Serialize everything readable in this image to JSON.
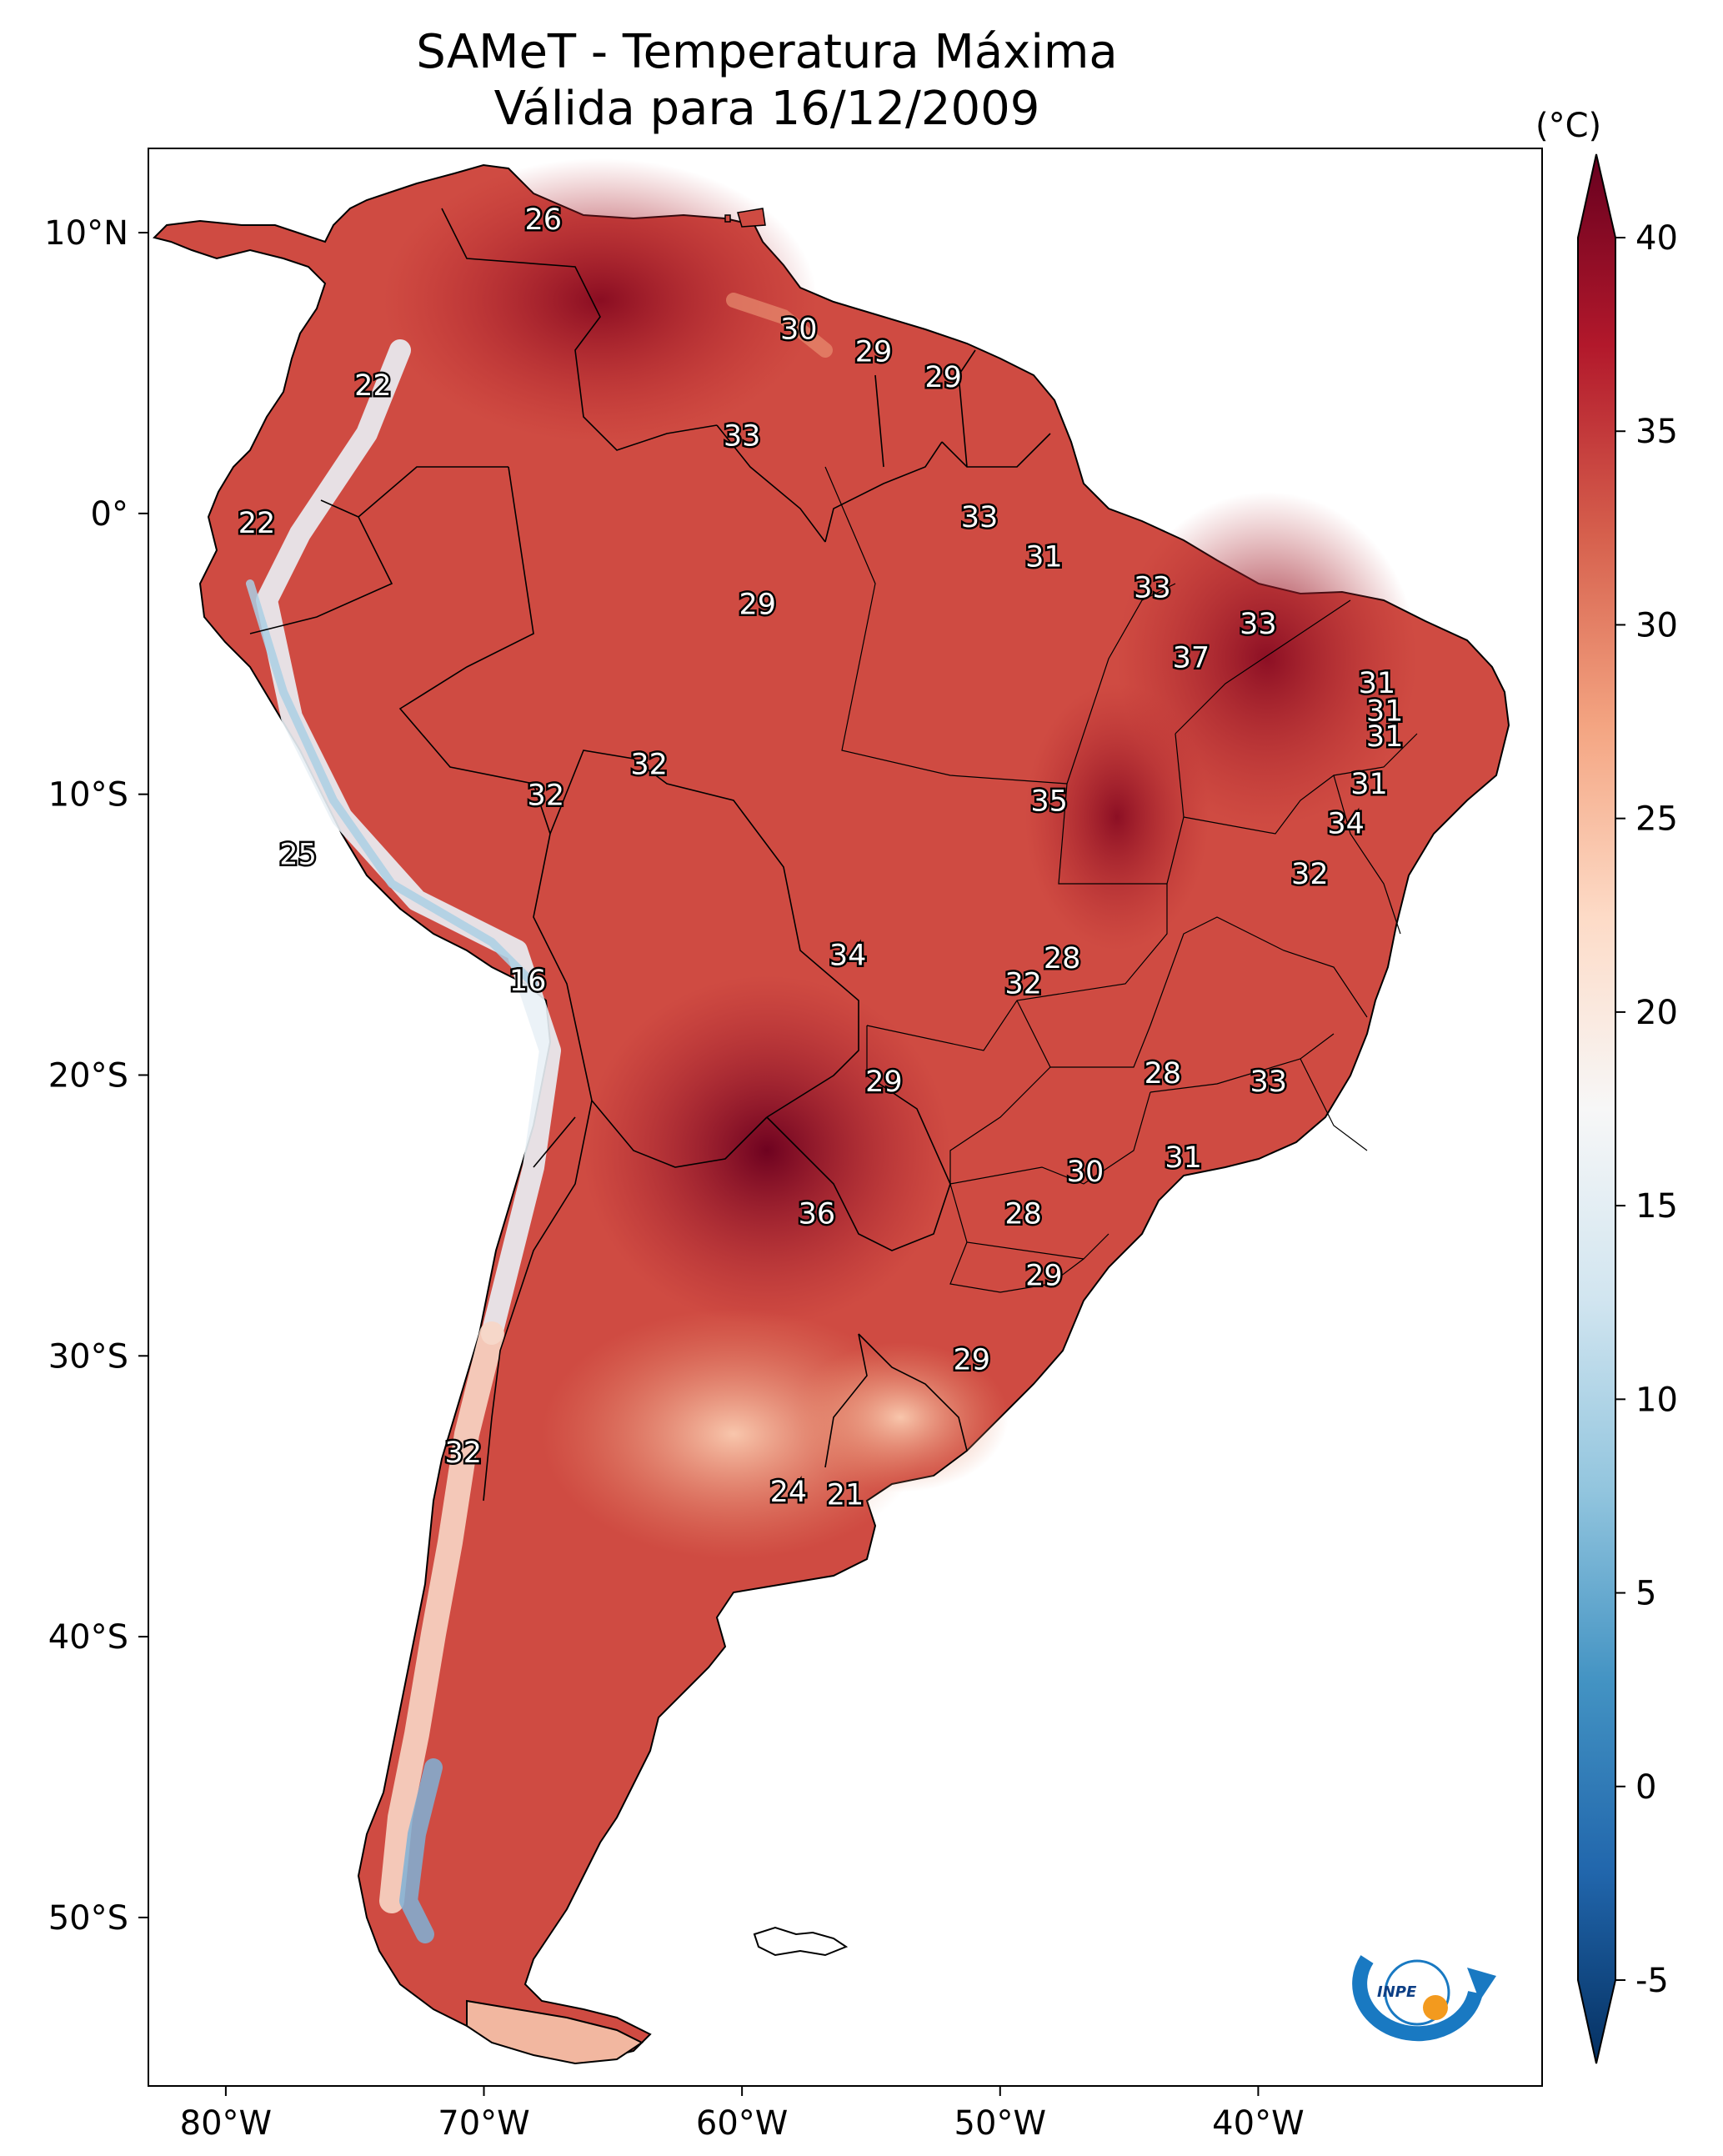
{
  "title": {
    "line1": "SAMeT - Temperatura Máxima",
    "line2": "Válida para 16/12/2009"
  },
  "colorbar": {
    "unit": "(°C)",
    "ticks": [
      "40",
      "35",
      "30",
      "25",
      "20",
      "15",
      "10",
      "5",
      "0",
      "-5"
    ],
    "range": [
      -5,
      40
    ],
    "colors": [
      "#053061",
      "#2166ac",
      "#4393c3",
      "#92c5de",
      "#d1e5f0",
      "#f7f7f7",
      "#fddbc7",
      "#f4a582",
      "#d6604d",
      "#b2182b",
      "#67001f"
    ]
  },
  "axes": {
    "lon_labels": [
      "80°W",
      "70°W",
      "60°W",
      "50°W",
      "40°W"
    ],
    "lat_labels": [
      "10°N",
      "0°",
      "10°S",
      "20°S",
      "30°S",
      "40°S",
      "50°S"
    ]
  },
  "contour_labels": [
    {
      "text": "26",
      "lon": -67.7,
      "lat": 10.5
    },
    {
      "text": "30",
      "lon": -57.8,
      "lat": 6.6
    },
    {
      "text": "29",
      "lon": -54.9,
      "lat": 5.8
    },
    {
      "text": "29",
      "lon": -52.2,
      "lat": 4.9
    },
    {
      "text": "22",
      "lon": -74.3,
      "lat": 4.6
    },
    {
      "text": "33",
      "lon": -60.0,
      "lat": 2.8
    },
    {
      "text": "22",
      "lon": -78.8,
      "lat": -0.3
    },
    {
      "text": "33",
      "lon": -50.8,
      "lat": -0.1
    },
    {
      "text": "31",
      "lon": -48.3,
      "lat": -1.5
    },
    {
      "text": "33",
      "lon": -44.1,
      "lat": -2.6
    },
    {
      "text": "29",
      "lon": -59.4,
      "lat": -3.2
    },
    {
      "text": "33",
      "lon": -40.0,
      "lat": -3.9
    },
    {
      "text": "37",
      "lon": -42.6,
      "lat": -5.1
    },
    {
      "text": "31",
      "lon": -35.4,
      "lat": -6.0
    },
    {
      "text": "31",
      "lon": -35.1,
      "lat": -7.0
    },
    {
      "text": "31",
      "lon": -35.1,
      "lat": -7.9
    },
    {
      "text": "32",
      "lon": -63.6,
      "lat": -8.9
    },
    {
      "text": "32",
      "lon": -67.6,
      "lat": -10.0
    },
    {
      "text": "31",
      "lon": -35.7,
      "lat": -9.6
    },
    {
      "text": "35",
      "lon": -48.1,
      "lat": -10.2
    },
    {
      "text": "34",
      "lon": -36.6,
      "lat": -11.0
    },
    {
      "text": "25",
      "lon": -77.2,
      "lat": -12.1
    },
    {
      "text": "32",
      "lon": -38.0,
      "lat": -12.8
    },
    {
      "text": "34",
      "lon": -55.9,
      "lat": -15.7
    },
    {
      "text": "28",
      "lon": -47.6,
      "lat": -15.8
    },
    {
      "text": "32",
      "lon": -49.1,
      "lat": -16.7
    },
    {
      "text": "16",
      "lon": -68.3,
      "lat": -16.6
    },
    {
      "text": "28",
      "lon": -43.7,
      "lat": -19.9
    },
    {
      "text": "29",
      "lon": -54.5,
      "lat": -20.2
    },
    {
      "text": "33",
      "lon": -39.6,
      "lat": -20.2
    },
    {
      "text": "31",
      "lon": -42.9,
      "lat": -22.9
    },
    {
      "text": "30",
      "lon": -46.7,
      "lat": -23.4
    },
    {
      "text": "36",
      "lon": -57.1,
      "lat": -24.9
    },
    {
      "text": "28",
      "lon": -49.1,
      "lat": -24.9
    },
    {
      "text": "29",
      "lon": -48.3,
      "lat": -27.1
    },
    {
      "text": "29",
      "lon": -51.1,
      "lat": -30.1
    },
    {
      "text": "32",
      "lon": -70.8,
      "lat": -33.4
    },
    {
      "text": "24",
      "lon": -58.2,
      "lat": -34.8
    },
    {
      "text": "21",
      "lon": -56.0,
      "lat": -34.9
    }
  ],
  "logo": {
    "text": "INPE"
  }
}
